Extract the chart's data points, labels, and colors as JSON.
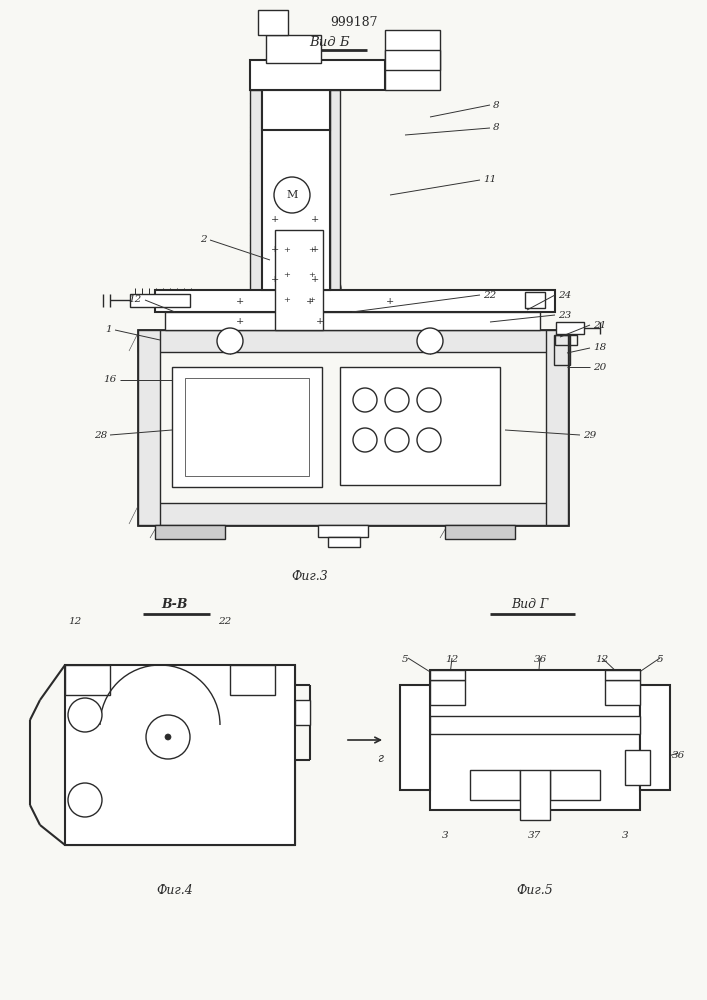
{
  "title": "999187",
  "bg_color": "#f5f5f0",
  "line_color": "#2a2a2a",
  "fig_width": 7.07,
  "fig_height": 10.0,
  "labels": {
    "vid_b": "Вид Б",
    "fig3": "Фиг.3",
    "vv": "В-В",
    "fig4": "Фиг.4",
    "vid_g": "Вид Г",
    "fig5": "Фиг.5",
    "arrow_g": "г"
  }
}
